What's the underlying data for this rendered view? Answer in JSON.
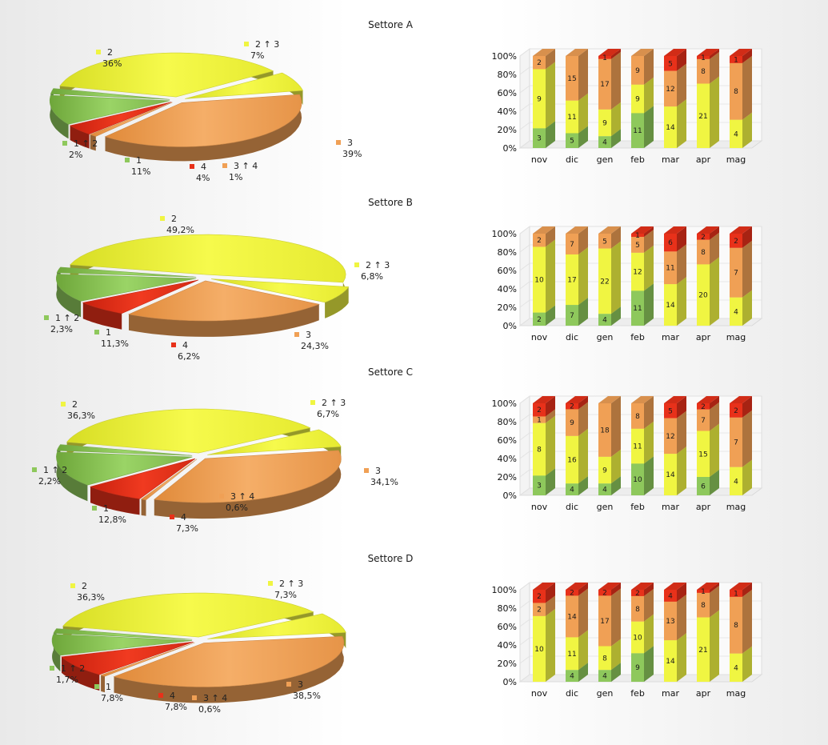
{
  "chart_data": [
    {
      "title": "Settore A",
      "pie": {
        "type": "pie",
        "slices": [
          {
            "name": "2",
            "value": 36,
            "label": "36%",
            "color": "#f0f542"
          },
          {
            "name": "2 ↑ 3",
            "value": 7,
            "label": "7%",
            "color": "#f0f542"
          },
          {
            "name": "3",
            "value": 39,
            "label": "39%",
            "color": "#f0a055"
          },
          {
            "name": "3 ↑ 4",
            "value": 1,
            "label": "1%",
            "color": "#f0a055"
          },
          {
            "name": "4",
            "value": 4,
            "label": "4%",
            "color": "#e8311a"
          },
          {
            "name": "1",
            "value": 11,
            "label": "11%",
            "color": "#8ec85c"
          },
          {
            "name": "1 ↑ 2",
            "value": 2,
            "label": "2%",
            "color": "#8ec85c"
          }
        ]
      },
      "bar": {
        "type": "bar",
        "stacked": "percent",
        "categories": [
          "nov",
          "dic",
          "gen",
          "feb",
          "mar",
          "apr",
          "mag"
        ],
        "ylim": [
          0,
          100
        ],
        "ytick_labels": [
          "0%",
          "20%",
          "40%",
          "60%",
          "80%",
          "100%"
        ],
        "series": [
          {
            "name": "1",
            "color": "#8ec85c",
            "values": [
              3,
              5,
              4,
              11,
              0,
              0,
              0
            ]
          },
          {
            "name": "2",
            "color": "#f0f542",
            "values": [
              9,
              11,
              9,
              9,
              14,
              21,
              4
            ]
          },
          {
            "name": "3",
            "color": "#f0a055",
            "values": [
              2,
              15,
              17,
              9,
              12,
              8,
              8
            ]
          },
          {
            "name": "4",
            "color": "#e8311a",
            "values": [
              0,
              0,
              1,
              0,
              5,
              1,
              1
            ]
          }
        ]
      }
    },
    {
      "title": "Settore B",
      "pie": {
        "type": "pie",
        "slices": [
          {
            "name": "2",
            "value": 49.2,
            "label": "49,2%",
            "color": "#f0f542"
          },
          {
            "name": "2 ↑ 3",
            "value": 6.8,
            "label": "6,8%",
            "color": "#f0f542"
          },
          {
            "name": "3",
            "value": 24.3,
            "label": "24,3%",
            "color": "#f0a055"
          },
          {
            "name": "4",
            "value": 6.2,
            "label": "6,2%",
            "color": "#e8311a"
          },
          {
            "name": "1",
            "value": 11.3,
            "label": "11,3%",
            "color": "#8ec85c"
          },
          {
            "name": "1 ↑ 2",
            "value": 2.3,
            "label": "2,3%",
            "color": "#8ec85c"
          }
        ]
      },
      "bar": {
        "type": "bar",
        "stacked": "percent",
        "categories": [
          "nov",
          "dic",
          "gen",
          "feb",
          "mar",
          "apr",
          "mag"
        ],
        "ylim": [
          0,
          100
        ],
        "ytick_labels": [
          "0%",
          "20%",
          "40%",
          "60%",
          "80%",
          "100%"
        ],
        "series": [
          {
            "name": "1",
            "color": "#8ec85c",
            "values": [
              2,
              7,
              4,
              11,
              0,
              0,
              0
            ]
          },
          {
            "name": "2",
            "color": "#f0f542",
            "values": [
              10,
              17,
              22,
              12,
              14,
              20,
              4
            ]
          },
          {
            "name": "3",
            "color": "#f0a055",
            "values": [
              2,
              7,
              5,
              5,
              11,
              8,
              7
            ]
          },
          {
            "name": "4",
            "color": "#e8311a",
            "values": [
              0,
              0,
              0,
              1,
              6,
              2,
              2
            ]
          }
        ]
      }
    },
    {
      "title": "Settore C",
      "pie": {
        "type": "pie",
        "slices": [
          {
            "name": "2",
            "value": 36.3,
            "label": "36,3%",
            "color": "#f0f542"
          },
          {
            "name": "2 ↑ 3",
            "value": 6.7,
            "label": "6,7%",
            "color": "#f0f542"
          },
          {
            "name": "3",
            "value": 34.1,
            "label": "34,1%",
            "color": "#f0a055"
          },
          {
            "name": "3 ↑ 4",
            "value": 0.6,
            "label": "0,6%",
            "color": "#f0a055"
          },
          {
            "name": "4",
            "value": 7.3,
            "label": "7,3%",
            "color": "#e8311a"
          },
          {
            "name": "1",
            "value": 12.8,
            "label": "12,8%",
            "color": "#8ec85c"
          },
          {
            "name": "1 ↑ 2",
            "value": 2.2,
            "label": "2,2%",
            "color": "#8ec85c"
          }
        ]
      },
      "bar": {
        "type": "bar",
        "stacked": "percent",
        "categories": [
          "nov",
          "dic",
          "gen",
          "feb",
          "mar",
          "apr",
          "mag"
        ],
        "ylim": [
          0,
          100
        ],
        "ytick_labels": [
          "0%",
          "20%",
          "40%",
          "60%",
          "80%",
          "100%"
        ],
        "series": [
          {
            "name": "1",
            "color": "#8ec85c",
            "values": [
              3,
              4,
              4,
              10,
              0,
              6,
              0
            ]
          },
          {
            "name": "2",
            "color": "#f0f542",
            "values": [
              8,
              16,
              9,
              11,
              14,
              15,
              4
            ]
          },
          {
            "name": "3",
            "color": "#f0a055",
            "values": [
              1,
              9,
              18,
              8,
              12,
              7,
              7
            ]
          },
          {
            "name": "4",
            "color": "#e8311a",
            "values": [
              2,
              2,
              0,
              0,
              5,
              2,
              2
            ]
          }
        ]
      }
    },
    {
      "title": "Settore D",
      "pie": {
        "type": "pie",
        "slices": [
          {
            "name": "2",
            "value": 36.3,
            "label": "36,3%",
            "color": "#f0f542"
          },
          {
            "name": "2 ↑ 3",
            "value": 7.3,
            "label": "7,3%",
            "color": "#f0f542"
          },
          {
            "name": "3",
            "value": 38.5,
            "label": "38,5%",
            "color": "#f0a055"
          },
          {
            "name": "3 ↑ 4",
            "value": 0.6,
            "label": "0,6%",
            "color": "#f0a055"
          },
          {
            "name": "4",
            "value": 7.8,
            "label": "7,8%",
            "color": "#e8311a"
          },
          {
            "name": "1",
            "value": 7.8,
            "label": "7,8%",
            "color": "#8ec85c"
          },
          {
            "name": "1 ↑ 2",
            "value": 1.7,
            "label": "1,7%",
            "color": "#8ec85c"
          }
        ]
      },
      "bar": {
        "type": "bar",
        "stacked": "percent",
        "categories": [
          "nov",
          "dic",
          "gen",
          "feb",
          "mar",
          "apr",
          "mag"
        ],
        "ylim": [
          0,
          100
        ],
        "ytick_labels": [
          "0%",
          "20%",
          "40%",
          "60%",
          "80%",
          "100%"
        ],
        "series": [
          {
            "name": "1",
            "color": "#8ec85c",
            "values": [
              0,
              4,
              4,
              9,
              0,
              0,
              0
            ]
          },
          {
            "name": "2",
            "color": "#f0f542",
            "values": [
              10,
              11,
              8,
              10,
              14,
              21,
              4
            ]
          },
          {
            "name": "3",
            "color": "#f0a055",
            "values": [
              2,
              14,
              17,
              8,
              13,
              8,
              8
            ]
          },
          {
            "name": "4",
            "color": "#e8311a",
            "values": [
              2,
              2,
              2,
              2,
              4,
              1,
              1
            ]
          }
        ]
      }
    }
  ]
}
